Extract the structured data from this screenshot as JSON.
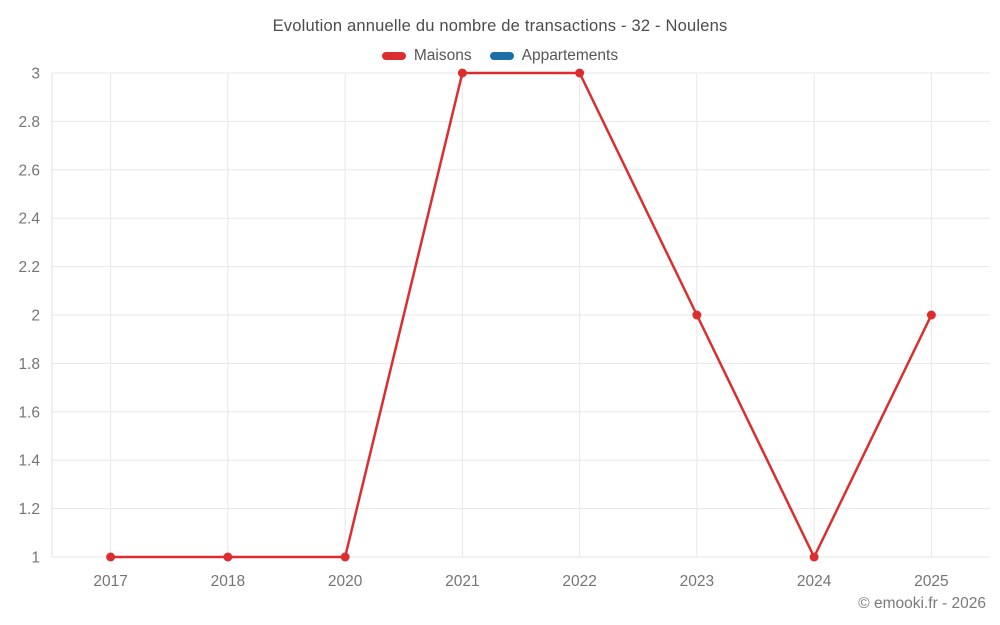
{
  "chart_data": {
    "type": "line",
    "title": "Evolution annuelle du nombre de transactions - 32 - Noulens",
    "categories": [
      "2017",
      "2018",
      "2020",
      "2021",
      "2022",
      "2023",
      "2024",
      "2025"
    ],
    "series": [
      {
        "name": "Maisons",
        "color": "#dc2e2e",
        "values": [
          1,
          1,
          1,
          3,
          3,
          2,
          1,
          2
        ]
      },
      {
        "name": "Appartements",
        "color": "#1c6fa8",
        "values": []
      }
    ],
    "xlabel": "",
    "ylabel": "",
    "ylim": [
      1,
      3
    ],
    "ytick_step": 0.2,
    "grid": true,
    "legend_position": "top"
  },
  "footer": {
    "copyright": "© emooki.fr - 2026"
  },
  "colors": {
    "maisons": "#dc2e2e",
    "appartements": "#1c6fa8",
    "gridline": "#e7e7e7",
    "axis_line": "#e0e0e0",
    "tick_text": "#757575",
    "title_text": "#4c4c4c"
  }
}
